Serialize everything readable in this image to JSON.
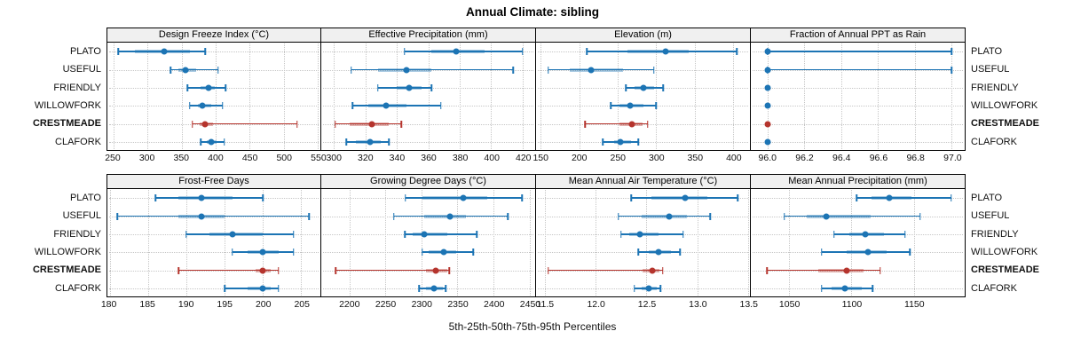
{
  "title": "Annual Climate: sibling",
  "caption": "5th-25th-50th-75th-95th Percentiles",
  "sites": [
    "PLATO",
    "USEFUL",
    "FRIENDLY",
    "WILLOWFORK",
    "CRESTMEADE",
    "CLAFORK"
  ],
  "highlight_site": "CRESTMEADE",
  "colors": {
    "point_normal": "#1c74b4",
    "point_highlight": "#b5342d",
    "header_bg": "#f0f0f0",
    "grid": "#c6c6c6",
    "border": "#000000"
  },
  "chart_data": [
    {
      "type": "scatter",
      "mark": "dot-with-percentile-intervals",
      "row": 0,
      "title": "Design Freeze Index (°C)",
      "percentile_labels": [
        "5th",
        "25th",
        "50th",
        "75th",
        "95th"
      ],
      "xlim": [
        241,
        554
      ],
      "ticks": [
        250,
        300,
        350,
        400,
        450,
        500,
        550
      ],
      "tick_labels": [
        "250",
        "300",
        "350",
        "400",
        "450",
        "500",
        "550"
      ],
      "series": [
        {
          "name": "PLATO",
          "percentiles": [
            257,
            282,
            325,
            362,
            385
          ]
        },
        {
          "name": "USEFUL",
          "percentiles": [
            334,
            345,
            356,
            372,
            404
          ]
        },
        {
          "name": "FRIENDLY",
          "percentiles": [
            359,
            378,
            390,
            399,
            415
          ]
        },
        {
          "name": "WILLOWFORK",
          "percentiles": [
            362,
            374,
            381,
            394,
            410
          ]
        },
        {
          "name": "CRESTMEADE",
          "percentiles": [
            366,
            376,
            384,
            396,
            520
          ]
        },
        {
          "name": "CLAFORK",
          "percentiles": [
            378,
            387,
            393,
            401,
            413
          ]
        }
      ]
    },
    {
      "type": "scatter",
      "mark": "dot-with-percentile-intervals",
      "row": 0,
      "title": "Effective Precipitation (mm)",
      "percentile_labels": [
        "5th",
        "25th",
        "50th",
        "75th",
        "95th"
      ],
      "xlim": [
        292,
        428
      ],
      "ticks": [
        300,
        320,
        340,
        360,
        380,
        400,
        420
      ],
      "tick_labels": [
        "300",
        "320",
        "340",
        "360",
        "380",
        "400",
        "420"
      ],
      "series": [
        {
          "name": "PLATO",
          "percentiles": [
            345,
            362,
            378,
            396,
            420
          ]
        },
        {
          "name": "USEFUL",
          "percentiles": [
            311,
            328,
            346,
            362,
            414
          ]
        },
        {
          "name": "FRIENDLY",
          "percentiles": [
            328,
            340,
            348,
            356,
            362
          ]
        },
        {
          "name": "WILLOWFORK",
          "percentiles": [
            312,
            322,
            333,
            346,
            368
          ]
        },
        {
          "name": "CRESTMEADE",
          "percentiles": [
            301,
            310,
            324,
            335,
            343
          ]
        },
        {
          "name": "CLAFORK",
          "percentiles": [
            308,
            314,
            323,
            330,
            335
          ]
        }
      ]
    },
    {
      "type": "scatter",
      "mark": "dot-with-percentile-intervals",
      "row": 0,
      "title": "Elevation (m)",
      "percentile_labels": [
        "5th",
        "25th",
        "50th",
        "75th",
        "95th"
      ],
      "xlim": [
        144,
        422
      ],
      "ticks": [
        150,
        200,
        250,
        300,
        350,
        400
      ],
      "tick_labels": [
        "150",
        "200",
        "250",
        "300",
        "350",
        "400"
      ],
      "series": [
        {
          "name": "PLATO",
          "percentiles": [
            210,
            263,
            312,
            342,
            405
          ]
        },
        {
          "name": "USEFUL",
          "percentiles": [
            160,
            188,
            216,
            257,
            297
          ]
        },
        {
          "name": "FRIENDLY",
          "percentiles": [
            261,
            272,
            284,
            298,
            309
          ]
        },
        {
          "name": "WILLOWFORK",
          "percentiles": [
            241,
            253,
            266,
            284,
            300
          ]
        },
        {
          "name": "CRESTMEADE",
          "percentiles": [
            208,
            252,
            269,
            283,
            289
          ]
        },
        {
          "name": "CLAFORK",
          "percentiles": [
            231,
            245,
            254,
            268,
            277
          ]
        }
      ]
    },
    {
      "type": "scatter",
      "mark": "dot-with-percentile-intervals",
      "row": 0,
      "title": "Fraction of Annual PPT as Rain",
      "percentile_labels": [
        "5th",
        "25th",
        "50th",
        "75th",
        "95th"
      ],
      "xlim": [
        95.91,
        97.07
      ],
      "ticks": [
        96.0,
        96.2,
        96.4,
        96.6,
        96.8,
        97.0
      ],
      "tick_labels": [
        "96.0",
        "96.2",
        "96.4",
        "96.6",
        "96.8",
        "97.0"
      ],
      "series": [
        {
          "name": "PLATO",
          "percentiles": [
            96.0,
            96.0,
            96.0,
            96.0,
            97.0
          ]
        },
        {
          "name": "USEFUL",
          "percentiles": [
            96.0,
            96.0,
            96.0,
            96.0,
            97.0
          ]
        },
        {
          "name": "FRIENDLY",
          "percentiles": [
            96.0,
            96.0,
            96.0,
            96.0,
            96.0
          ]
        },
        {
          "name": "WILLOWFORK",
          "percentiles": [
            96.0,
            96.0,
            96.0,
            96.0,
            96.0
          ]
        },
        {
          "name": "CRESTMEADE",
          "percentiles": [
            96.0,
            96.0,
            96.0,
            96.0,
            96.0
          ]
        },
        {
          "name": "CLAFORK",
          "percentiles": [
            96.0,
            96.0,
            96.0,
            96.0,
            96.0
          ]
        }
      ]
    },
    {
      "type": "scatter",
      "mark": "dot-with-percentile-intervals",
      "row": 1,
      "title": "Frost-Free Days",
      "percentile_labels": [
        "5th",
        "25th",
        "50th",
        "75th",
        "95th"
      ],
      "xlim": [
        179.7,
        207.5
      ],
      "ticks": [
        180,
        185,
        190,
        195,
        200,
        205
      ],
      "tick_labels": [
        "180",
        "185",
        "190",
        "195",
        "200",
        "205"
      ],
      "series": [
        {
          "name": "PLATO",
          "percentiles": [
            186,
            189,
            192,
            196,
            200
          ]
        },
        {
          "name": "USEFUL",
          "percentiles": [
            181,
            189,
            192,
            195,
            206
          ]
        },
        {
          "name": "FRIENDLY",
          "percentiles": [
            190,
            193,
            196,
            200,
            204
          ]
        },
        {
          "name": "WILLOWFORK",
          "percentiles": [
            196,
            198,
            200,
            202,
            204
          ]
        },
        {
          "name": "CRESTMEADE",
          "percentiles": [
            189,
            199,
            200,
            201,
            202
          ]
        },
        {
          "name": "CLAFORK",
          "percentiles": [
            195,
            198,
            200,
            201,
            202
          ]
        }
      ]
    },
    {
      "type": "scatter",
      "mark": "dot-with-percentile-intervals",
      "row": 1,
      "title": "Growing Degree Days (°C)",
      "percentile_labels": [
        "5th",
        "25th",
        "50th",
        "75th",
        "95th"
      ],
      "xlim": [
        2161,
        2458
      ],
      "ticks": [
        2200,
        2250,
        2300,
        2350,
        2400,
        2450
      ],
      "tick_labels": [
        "2200",
        "2250",
        "2300",
        "2350",
        "2400",
        "2450"
      ],
      "series": [
        {
          "name": "PLATO",
          "percentiles": [
            2278,
            2302,
            2358,
            2392,
            2440
          ]
        },
        {
          "name": "USEFUL",
          "percentiles": [
            2262,
            2304,
            2340,
            2362,
            2420
          ]
        },
        {
          "name": "FRIENDLY",
          "percentiles": [
            2277,
            2288,
            2304,
            2336,
            2377
          ]
        },
        {
          "name": "WILLOWFORK",
          "percentiles": [
            2301,
            2310,
            2331,
            2348,
            2372
          ]
        },
        {
          "name": "CRESTMEADE",
          "percentiles": [
            2181,
            2306,
            2320,
            2336,
            2339
          ]
        },
        {
          "name": "CLAFORK",
          "percentiles": [
            2297,
            2306,
            2317,
            2330,
            2334
          ]
        }
      ]
    },
    {
      "type": "scatter",
      "mark": "dot-with-percentile-intervals",
      "row": 1,
      "title": "Mean Annual Air Temperature (°C)",
      "percentile_labels": [
        "5th",
        "25th",
        "50th",
        "75th",
        "95th"
      ],
      "xlim": [
        11.41,
        13.52
      ],
      "ticks": [
        11.5,
        12.0,
        12.5,
        13.0,
        13.5
      ],
      "tick_labels": [
        "11.5",
        "12.0",
        "12.5",
        "13.0",
        "13.5"
      ],
      "series": [
        {
          "name": "PLATO",
          "percentiles": [
            12.35,
            12.55,
            12.88,
            13.1,
            13.4
          ]
        },
        {
          "name": "USEFUL",
          "percentiles": [
            12.22,
            12.45,
            12.72,
            12.9,
            13.13
          ]
        },
        {
          "name": "FRIENDLY",
          "percentiles": [
            12.25,
            12.33,
            12.43,
            12.62,
            12.86
          ]
        },
        {
          "name": "WILLOWFORK",
          "percentiles": [
            12.42,
            12.52,
            12.62,
            12.74,
            12.83
          ]
        },
        {
          "name": "CRESTMEADE",
          "percentiles": [
            11.53,
            12.46,
            12.56,
            12.63,
            12.66
          ]
        },
        {
          "name": "CLAFORK",
          "percentiles": [
            12.38,
            12.45,
            12.52,
            12.6,
            12.64
          ]
        }
      ]
    },
    {
      "type": "scatter",
      "mark": "dot-with-percentile-intervals",
      "row": 1,
      "title": "Mean Annual Precipitation (mm)",
      "percentile_labels": [
        "5th",
        "25th",
        "50th",
        "75th",
        "95th"
      ],
      "xlim": [
        1019,
        1191
      ],
      "ticks": [
        1050,
        1100,
        1150
      ],
      "tick_labels": [
        "1050",
        "1100",
        "1150"
      ],
      "series": [
        {
          "name": "PLATO",
          "percentiles": [
            1104,
            1116,
            1130,
            1148,
            1180
          ]
        },
        {
          "name": "USEFUL",
          "percentiles": [
            1046,
            1064,
            1080,
            1115,
            1155
          ]
        },
        {
          "name": "FRIENDLY",
          "percentiles": [
            1086,
            1098,
            1111,
            1126,
            1143
          ]
        },
        {
          "name": "WILLOWFORK",
          "percentiles": [
            1076,
            1096,
            1113,
            1128,
            1147
          ]
        },
        {
          "name": "CRESTMEADE",
          "percentiles": [
            1032,
            1073,
            1096,
            1110,
            1123
          ]
        },
        {
          "name": "CLAFORK",
          "percentiles": [
            1076,
            1084,
            1095,
            1108,
            1117
          ]
        }
      ]
    }
  ]
}
